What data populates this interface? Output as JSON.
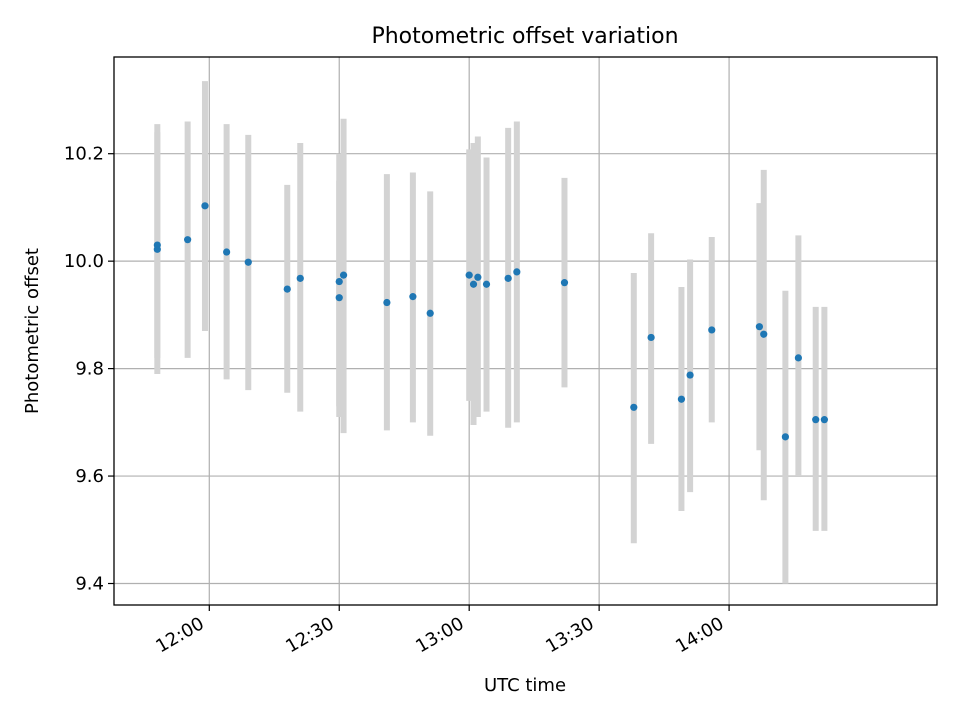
{
  "chart_data": {
    "type": "scatter",
    "title": "Photometric offset variation",
    "xlabel": "UTC time",
    "ylabel": "Photometric offset",
    "x_axis_type": "time",
    "xlim": [
      "11:38",
      "14:48"
    ],
    "ylim": [
      9.36,
      10.38
    ],
    "x_ticks": [
      "12:00",
      "12:30",
      "13:00",
      "13:30",
      "14:00"
    ],
    "y_ticks": [
      9.4,
      9.6,
      9.8,
      10.0,
      10.2
    ],
    "y_tick_labels": [
      "9.4",
      "9.6",
      "9.8",
      "10.0",
      "10.2"
    ],
    "grid": true,
    "legend": "none",
    "marker_color": "#1f77b4",
    "errorbar_color": "#d3d3d3",
    "points": [
      {
        "x": "11:48",
        "y": 10.022,
        "lo": 9.79,
        "hi": 10.255
      },
      {
        "x": "11:48",
        "y": 10.03,
        "lo": 9.82,
        "hi": 10.24
      },
      {
        "x": "11:55",
        "y": 10.04,
        "lo": 9.82,
        "hi": 10.26
      },
      {
        "x": "11:59",
        "y": 10.103,
        "lo": 9.87,
        "hi": 10.335
      },
      {
        "x": "12:04",
        "y": 10.017,
        "lo": 9.78,
        "hi": 10.255
      },
      {
        "x": "12:09",
        "y": 9.998,
        "lo": 9.76,
        "hi": 10.235
      },
      {
        "x": "12:18",
        "y": 9.948,
        "lo": 9.755,
        "hi": 10.142
      },
      {
        "x": "12:21",
        "y": 9.968,
        "lo": 9.72,
        "hi": 10.22
      },
      {
        "x": "12:30",
        "y": 9.932,
        "lo": 9.71,
        "hi": 10.15
      },
      {
        "x": "12:30",
        "y": 9.962,
        "lo": 9.73,
        "hi": 10.2
      },
      {
        "x": "12:31",
        "y": 9.974,
        "lo": 9.68,
        "hi": 10.265
      },
      {
        "x": "12:41",
        "y": 9.923,
        "lo": 9.685,
        "hi": 10.162
      },
      {
        "x": "12:47",
        "y": 9.934,
        "lo": 9.7,
        "hi": 10.165
      },
      {
        "x": "12:51",
        "y": 9.903,
        "lo": 9.675,
        "hi": 10.13
      },
      {
        "x": "13:00",
        "y": 9.974,
        "lo": 9.74,
        "hi": 10.208
      },
      {
        "x": "13:01",
        "y": 9.957,
        "lo": 9.695,
        "hi": 10.22
      },
      {
        "x": "13:02",
        "y": 9.97,
        "lo": 9.71,
        "hi": 10.232
      },
      {
        "x": "13:04",
        "y": 9.957,
        "lo": 9.72,
        "hi": 10.193
      },
      {
        "x": "13:09",
        "y": 9.968,
        "lo": 9.69,
        "hi": 10.248
      },
      {
        "x": "13:11",
        "y": 9.98,
        "lo": 9.7,
        "hi": 10.26
      },
      {
        "x": "13:22",
        "y": 9.96,
        "lo": 9.765,
        "hi": 10.155
      },
      {
        "x": "13:38",
        "y": 9.728,
        "lo": 9.475,
        "hi": 9.978
      },
      {
        "x": "13:42",
        "y": 9.858,
        "lo": 9.66,
        "hi": 10.052
      },
      {
        "x": "13:49",
        "y": 9.743,
        "lo": 9.535,
        "hi": 9.952
      },
      {
        "x": "13:51",
        "y": 9.788,
        "lo": 9.57,
        "hi": 10.003
      },
      {
        "x": "13:56",
        "y": 9.872,
        "lo": 9.7,
        "hi": 10.045
      },
      {
        "x": "14:07",
        "y": 9.878,
        "lo": 9.648,
        "hi": 10.108
      },
      {
        "x": "14:08",
        "y": 9.864,
        "lo": 9.555,
        "hi": 10.17
      },
      {
        "x": "14:13",
        "y": 9.673,
        "lo": 9.4,
        "hi": 9.945
      },
      {
        "x": "14:16",
        "y": 9.82,
        "lo": 9.6,
        "hi": 10.048
      },
      {
        "x": "14:20",
        "y": 9.705,
        "lo": 9.498,
        "hi": 9.915
      },
      {
        "x": "14:22",
        "y": 9.705,
        "lo": 9.498,
        "hi": 9.915
      }
    ]
  }
}
